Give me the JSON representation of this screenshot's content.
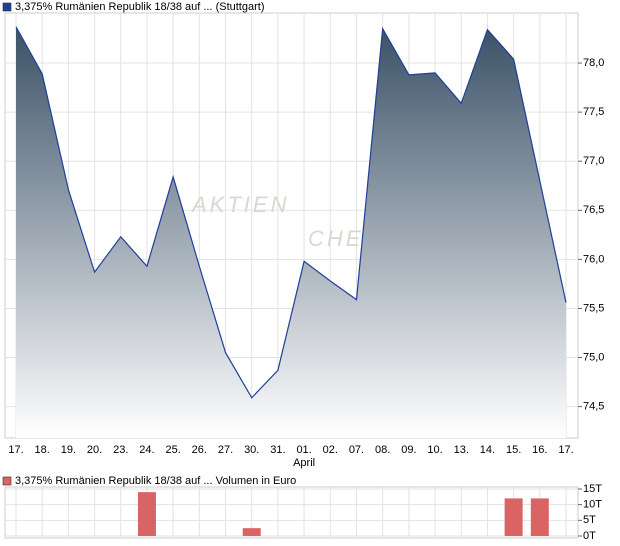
{
  "chart_data": [
    {
      "type": "area",
      "legend": "3,375% Rumänien Republik 18/38 auf ... (Stuttgart)",
      "color": "#1f3f99",
      "fill_top": "#3b5167",
      "categories": [
        "17.",
        "18.",
        "19.",
        "20.",
        "23.",
        "24.",
        "25.",
        "26.",
        "27.",
        "30.",
        "31.",
        "01.",
        "02.",
        "07.",
        "08.",
        "09.",
        "10.",
        "13.",
        "14.",
        "15.",
        "16.",
        "17."
      ],
      "month_label": "April",
      "month_label_at": "01.",
      "values": [
        78.37,
        77.89,
        76.71,
        75.87,
        76.23,
        75.93,
        76.84,
        75.93,
        75.05,
        74.59,
        74.87,
        75.98,
        75.78,
        75.59,
        78.35,
        77.88,
        77.9,
        77.59,
        78.34,
        78.04,
        76.8,
        75.56
      ],
      "ylim": [
        74.18,
        78.51
      ],
      "yticks": [
        {
          "value": 74.5,
          "label": "74,5"
        },
        {
          "value": 75.0,
          "label": "75,0"
        },
        {
          "value": 75.5,
          "label": "75,5"
        },
        {
          "value": 76.0,
          "label": "76,0"
        },
        {
          "value": 76.5,
          "label": "76,5"
        },
        {
          "value": 77.0,
          "label": "77,0"
        },
        {
          "value": 77.5,
          "label": "77,5"
        },
        {
          "value": 78.0,
          "label": "78,0"
        }
      ],
      "grid": true,
      "watermark": [
        "AKTIEN",
        "CHE"
      ]
    },
    {
      "type": "bar",
      "legend": "3,375% Rumänien Republik 18/38 auf ... Volumen in Euro",
      "color": "#d96464",
      "values": [
        0,
        0,
        0,
        0,
        0,
        14,
        0,
        0,
        0,
        2.5,
        0,
        0,
        0,
        0,
        0,
        0,
        0,
        0,
        0,
        12,
        12,
        0
      ],
      "ylim": [
        -0.64,
        15.64
      ],
      "yticks": [
        {
          "value": 0,
          "label": "0T"
        },
        {
          "value": 5,
          "label": "5T"
        },
        {
          "value": 10,
          "label": "10T"
        },
        {
          "value": 15,
          "label": "15T"
        }
      ],
      "grid": true
    }
  ]
}
